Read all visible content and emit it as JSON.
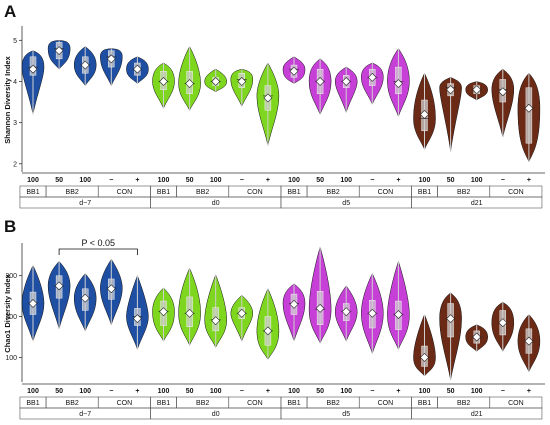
{
  "colors": {
    "d-7": "#1f4fa3",
    "d0": "#7fd61f",
    "d5": "#c63fd6",
    "d21": "#6b2a16",
    "box": "#cfcfcf",
    "axis": "#333333"
  },
  "chart_data": [
    {
      "panel": "A",
      "type": "violin",
      "ylabel": "Shannon Diversity Index",
      "ylim": [
        1.8,
        5.3
      ],
      "yticks": [
        2,
        3,
        4,
        5
      ],
      "groups": [
        {
          "timepoint": "d−7",
          "dose": "100",
          "treatment": "BB1",
          "mean": 4.3,
          "median": 4.35,
          "q1": 4.15,
          "q3": 4.6,
          "min": 3.2,
          "max": 4.75
        },
        {
          "timepoint": "d−7",
          "dose": "50",
          "treatment": "BB2",
          "mean": 4.75,
          "median": 4.8,
          "q1": 4.55,
          "q3": 4.95,
          "min": 4.3,
          "max": 5.0
        },
        {
          "timepoint": "d−7",
          "dose": "100",
          "treatment": "BB2",
          "mean": 4.4,
          "median": 4.4,
          "q1": 4.2,
          "q3": 4.6,
          "min": 3.9,
          "max": 4.85
        },
        {
          "timepoint": "d−7",
          "dose": "−",
          "treatment": "CON",
          "mean": 4.55,
          "median": 4.6,
          "q1": 4.35,
          "q3": 4.75,
          "min": 3.9,
          "max": 4.8
        },
        {
          "timepoint": "d−7",
          "dose": "+",
          "treatment": "CON",
          "mean": 4.3,
          "median": 4.3,
          "q1": 4.15,
          "q3": 4.45,
          "min": 3.95,
          "max": 4.6
        },
        {
          "timepoint": "d0",
          "dose": "100",
          "treatment": "BB1",
          "mean": 4.0,
          "median": 4.0,
          "q1": 3.8,
          "q3": 4.25,
          "min": 3.35,
          "max": 4.45
        },
        {
          "timepoint": "d0",
          "dose": "50",
          "treatment": "BB2",
          "mean": 3.95,
          "median": 3.95,
          "q1": 3.7,
          "q3": 4.25,
          "min": 3.3,
          "max": 4.85
        },
        {
          "timepoint": "d0",
          "dose": "100",
          "treatment": "BB2",
          "mean": 4.0,
          "median": 4.0,
          "q1": 3.9,
          "q3": 4.1,
          "min": 3.75,
          "max": 4.3
        },
        {
          "timepoint": "d0",
          "dose": "−",
          "treatment": "CON",
          "mean": 4.0,
          "median": 4.05,
          "q1": 3.85,
          "q3": 4.2,
          "min": 3.4,
          "max": 4.3
        },
        {
          "timepoint": "d0",
          "dose": "+",
          "treatment": "CON",
          "mean": 3.6,
          "median": 3.65,
          "q1": 3.3,
          "q3": 3.9,
          "min": 2.45,
          "max": 4.45
        },
        {
          "timepoint": "d5",
          "dose": "100",
          "treatment": "BB1",
          "mean": 4.25,
          "median": 4.3,
          "q1": 4.1,
          "q3": 4.4,
          "min": 3.95,
          "max": 4.6
        },
        {
          "timepoint": "d5",
          "dose": "50",
          "treatment": "BB2",
          "mean": 4.0,
          "median": 4.0,
          "q1": 3.7,
          "q3": 4.3,
          "min": 3.2,
          "max": 4.55
        },
        {
          "timepoint": "d5",
          "dose": "100",
          "treatment": "BB2",
          "mean": 4.0,
          "median": 4.0,
          "q1": 3.85,
          "q3": 4.15,
          "min": 3.25,
          "max": 4.35
        },
        {
          "timepoint": "d5",
          "dose": "−",
          "treatment": "CON",
          "mean": 4.1,
          "median": 4.1,
          "q1": 3.9,
          "q3": 4.3,
          "min": 3.45,
          "max": 4.45
        },
        {
          "timepoint": "d5",
          "dose": "+",
          "treatment": "CON",
          "mean": 3.95,
          "median": 4.0,
          "q1": 3.7,
          "q3": 4.35,
          "min": 3.15,
          "max": 4.8
        },
        {
          "timepoint": "d21",
          "dose": "100",
          "treatment": "BB1",
          "mean": 3.2,
          "median": 3.1,
          "q1": 2.8,
          "q3": 3.55,
          "min": 2.35,
          "max": 4.2
        },
        {
          "timepoint": "d21",
          "dose": "50",
          "treatment": "BB2",
          "mean": 3.8,
          "median": 3.85,
          "q1": 3.65,
          "q3": 3.95,
          "min": 2.3,
          "max": 4.1
        },
        {
          "timepoint": "d21",
          "dose": "100",
          "treatment": "BB2",
          "mean": 3.8,
          "median": 3.8,
          "q1": 3.7,
          "q3": 3.9,
          "min": 3.55,
          "max": 4.0
        },
        {
          "timepoint": "d21",
          "dose": "−",
          "treatment": "CON",
          "mean": 3.75,
          "median": 3.8,
          "q1": 3.5,
          "q3": 4.05,
          "min": 2.65,
          "max": 4.3
        },
        {
          "timepoint": "d21",
          "dose": "+",
          "treatment": "CON",
          "mean": 3.35,
          "median": 3.35,
          "q1": 2.5,
          "q3": 3.85,
          "min": 2.05,
          "max": 4.2
        }
      ]
    },
    {
      "panel": "B",
      "type": "violin",
      "ylabel": "Chao1 Diversity Index",
      "ylim": [
        40,
        375
      ],
      "yticks": [
        100,
        200,
        300
      ],
      "annotation": {
        "text": "P < 0.05",
        "from_group": 1,
        "to_group": 4
      },
      "groups": [
        {
          "timepoint": "d−7",
          "dose": "100",
          "treatment": "BB1",
          "mean": 232,
          "median": 232,
          "q1": 205,
          "q3": 260,
          "min": 140,
          "max": 325
        },
        {
          "timepoint": "d−7",
          "dose": "50",
          "treatment": "BB2",
          "mean": 275,
          "median": 275,
          "q1": 245,
          "q3": 300,
          "min": 170,
          "max": 335
        },
        {
          "timepoint": "d−7",
          "dose": "100",
          "treatment": "BB2",
          "mean": 245,
          "median": 245,
          "q1": 215,
          "q3": 268,
          "min": 165,
          "max": 305
        },
        {
          "timepoint": "d−7",
          "dose": "−",
          "treatment": "CON",
          "mean": 268,
          "median": 270,
          "q1": 242,
          "q3": 292,
          "min": 180,
          "max": 340
        },
        {
          "timepoint": "d−7",
          "dose": "+",
          "treatment": "CON",
          "mean": 195,
          "median": 200,
          "q1": 178,
          "q3": 220,
          "min": 120,
          "max": 300
        },
        {
          "timepoint": "d0",
          "dose": "100",
          "treatment": "BB1",
          "mean": 212,
          "median": 212,
          "q1": 178,
          "q3": 238,
          "min": 140,
          "max": 270
        },
        {
          "timepoint": "d0",
          "dose": "50",
          "treatment": "BB2",
          "mean": 208,
          "median": 208,
          "q1": 175,
          "q3": 248,
          "min": 130,
          "max": 318
        },
        {
          "timepoint": "d0",
          "dose": "100",
          "treatment": "BB2",
          "mean": 190,
          "median": 192,
          "q1": 165,
          "q3": 222,
          "min": 125,
          "max": 302
        },
        {
          "timepoint": "d0",
          "dose": "−",
          "treatment": "CON",
          "mean": 208,
          "median": 208,
          "q1": 195,
          "q3": 222,
          "min": 140,
          "max": 252
        },
        {
          "timepoint": "d0",
          "dose": "+",
          "treatment": "CON",
          "mean": 165,
          "median": 165,
          "q1": 130,
          "q3": 200,
          "min": 95,
          "max": 268
        },
        {
          "timepoint": "d5",
          "dose": "100",
          "treatment": "BB1",
          "mean": 230,
          "median": 232,
          "q1": 205,
          "q3": 255,
          "min": 140,
          "max": 280
        },
        {
          "timepoint": "d5",
          "dose": "50",
          "treatment": "BB2",
          "mean": 220,
          "median": 218,
          "q1": 180,
          "q3": 262,
          "min": 135,
          "max": 370
        },
        {
          "timepoint": "d5",
          "dose": "100",
          "treatment": "BB2",
          "mean": 212,
          "median": 212,
          "q1": 190,
          "q3": 232,
          "min": 140,
          "max": 275
        },
        {
          "timepoint": "d5",
          "dose": "−",
          "treatment": "CON",
          "mean": 208,
          "median": 208,
          "q1": 172,
          "q3": 240,
          "min": 110,
          "max": 305
        },
        {
          "timepoint": "d5",
          "dose": "+",
          "treatment": "CON",
          "mean": 205,
          "median": 205,
          "q1": 168,
          "q3": 238,
          "min": 120,
          "max": 335
        },
        {
          "timepoint": "d21",
          "dose": "100",
          "treatment": "BB1",
          "mean": 100,
          "median": 100,
          "q1": 78,
          "q3": 128,
          "min": 55,
          "max": 205
        },
        {
          "timepoint": "d21",
          "dose": "50",
          "treatment": "BB2",
          "mean": 195,
          "median": 195,
          "q1": 150,
          "q3": 232,
          "min": 45,
          "max": 258
        },
        {
          "timepoint": "d21",
          "dose": "100",
          "treatment": "BB2",
          "mean": 150,
          "median": 150,
          "q1": 135,
          "q3": 165,
          "min": 115,
          "max": 180
        },
        {
          "timepoint": "d21",
          "dose": "−",
          "treatment": "CON",
          "mean": 185,
          "median": 185,
          "q1": 155,
          "q3": 215,
          "min": 115,
          "max": 235
        },
        {
          "timepoint": "d21",
          "dose": "+",
          "treatment": "CON",
          "mean": 140,
          "median": 140,
          "q1": 110,
          "q3": 170,
          "min": 65,
          "max": 205
        }
      ]
    }
  ],
  "panels": {
    "A": {
      "letter": "A"
    },
    "B": {
      "letter": "B"
    }
  }
}
